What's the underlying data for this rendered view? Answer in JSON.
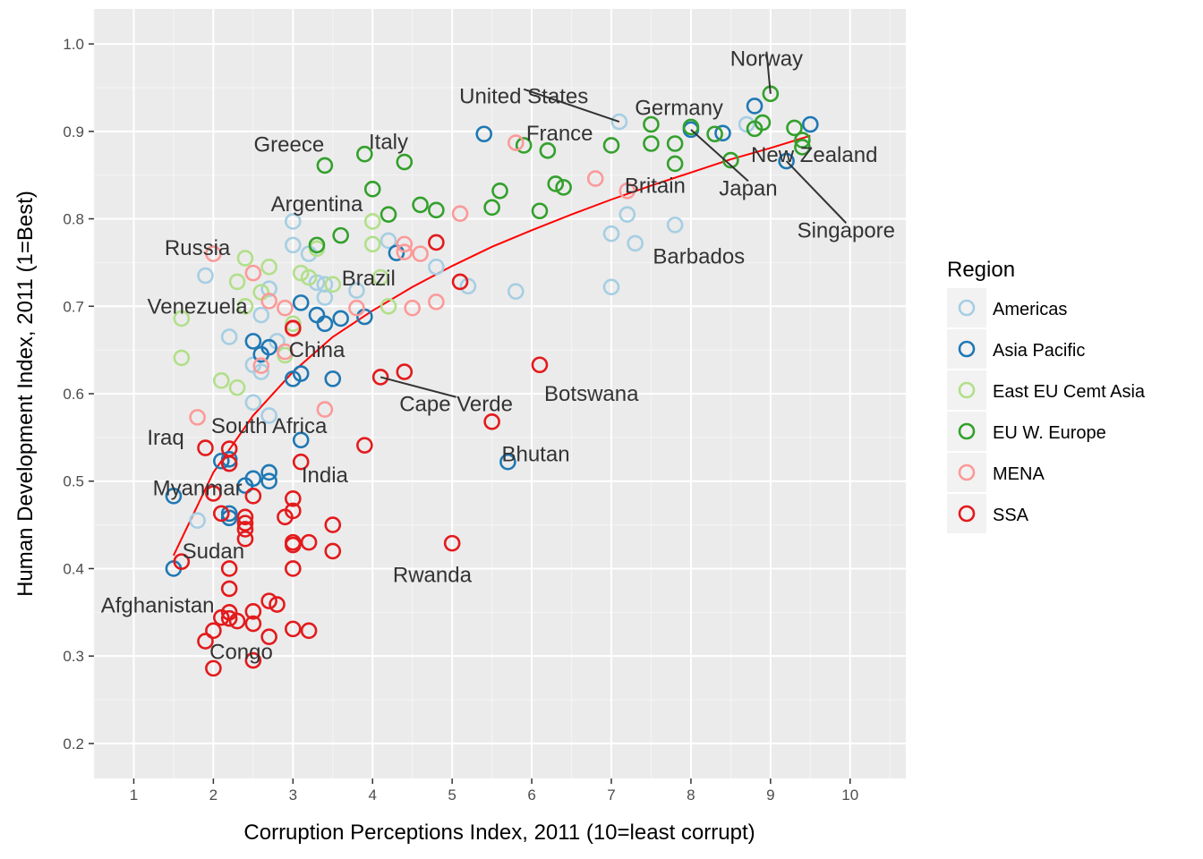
{
  "chart_data": {
    "type": "scatter",
    "xlabel": "Corruption Perceptions Index, 2011 (10=least corrupt)",
    "ylabel": "Human Development Index, 2011 (1=Best)",
    "xlim": [
      0.5,
      10.7
    ],
    "ylim": [
      0.16,
      1.04
    ],
    "xticks": [
      1,
      2,
      3,
      4,
      5,
      6,
      7,
      8,
      9,
      10
    ],
    "yticks": [
      0.2,
      0.3,
      0.4,
      0.5,
      0.6,
      0.7,
      0.8,
      0.9,
      1.0
    ],
    "ytick_labels": [
      "0.2",
      "0.3",
      "0.4",
      "0.5",
      "0.6",
      "0.7",
      "0.8",
      "0.9",
      "1.0"
    ],
    "grid": true,
    "legend": {
      "title": "Region",
      "position": "right",
      "entries": [
        {
          "name": "Americas",
          "color": "#A6CEE3"
        },
        {
          "name": "Asia Pacific",
          "color": "#1F78B4"
        },
        {
          "name": "East EU Cemt Asia",
          "color": "#B2DF8A"
        },
        {
          "name": "EU W. Europe",
          "color": "#33A02C"
        },
        {
          "name": "MENA",
          "color": "#FB9A99"
        },
        {
          "name": "SSA",
          "color": "#E31A1C"
        }
      ]
    },
    "trend_line": {
      "color": "#FF0000",
      "points": [
        [
          1.5,
          0.415
        ],
        [
          2,
          0.51
        ],
        [
          2.5,
          0.575
        ],
        [
          3,
          0.625
        ],
        [
          3.5,
          0.665
        ],
        [
          4,
          0.695
        ],
        [
          4.5,
          0.722
        ],
        [
          5,
          0.746
        ],
        [
          5.5,
          0.768
        ],
        [
          6,
          0.787
        ],
        [
          6.5,
          0.805
        ],
        [
          7,
          0.822
        ],
        [
          7.5,
          0.838
        ],
        [
          8,
          0.853
        ],
        [
          8.5,
          0.868
        ],
        [
          9,
          0.881
        ],
        [
          9.5,
          0.895
        ]
      ]
    },
    "series": [
      {
        "name": "Americas",
        "color": "#A6CEE3",
        "points": [
          [
            1.9,
            0.735
          ],
          [
            2.2,
            0.665
          ],
          [
            2.5,
            0.633
          ],
          [
            2.5,
            0.59
          ],
          [
            2.6,
            0.69
          ],
          [
            2.6,
            0.625
          ],
          [
            2.7,
            0.72
          ],
          [
            2.7,
            0.575
          ],
          [
            2.8,
            0.66
          ],
          [
            3,
            0.797
          ],
          [
            3,
            0.77
          ],
          [
            3.2,
            0.76
          ],
          [
            3.3,
            0.727
          ],
          [
            3.4,
            0.71
          ],
          [
            3.4,
            0.725
          ],
          [
            3.8,
            0.718
          ],
          [
            4.2,
            0.775
          ],
          [
            4.8,
            0.745
          ],
          [
            5.2,
            0.723
          ],
          [
            5.8,
            0.717
          ],
          [
            7,
            0.783
          ],
          [
            7,
            0.722
          ],
          [
            7.1,
            0.911
          ],
          [
            7.2,
            0.805
          ],
          [
            7.3,
            0.772
          ],
          [
            7.8,
            0.793
          ],
          [
            8.7,
            0.908
          ],
          [
            1.8,
            0.455
          ],
          [
            2.1,
            0.463
          ]
        ]
      },
      {
        "name": "Asia Pacific",
        "color": "#1F78B4",
        "points": [
          [
            1.5,
            0.4
          ],
          [
            1.5,
            0.483
          ],
          [
            2.1,
            0.523
          ],
          [
            2.2,
            0.525
          ],
          [
            2.2,
            0.463
          ],
          [
            2.2,
            0.458
          ],
          [
            2.4,
            0.495
          ],
          [
            2.5,
            0.503
          ],
          [
            2.5,
            0.66
          ],
          [
            2.6,
            0.645
          ],
          [
            2.7,
            0.51
          ],
          [
            2.7,
            0.5
          ],
          [
            2.7,
            0.653
          ],
          [
            3,
            0.617
          ],
          [
            3.1,
            0.704
          ],
          [
            3.1,
            0.623
          ],
          [
            3.1,
            0.547
          ],
          [
            3.3,
            0.69
          ],
          [
            3.4,
            0.68
          ],
          [
            3.5,
            0.617
          ],
          [
            3.6,
            0.686
          ],
          [
            3.9,
            0.688
          ],
          [
            4.3,
            0.761
          ],
          [
            5.4,
            0.897
          ],
          [
            5.7,
            0.522
          ],
          [
            8,
            0.902
          ],
          [
            8.8,
            0.929
          ],
          [
            8.4,
            0.898
          ],
          [
            9.2,
            0.866
          ],
          [
            9.5,
            0.908
          ]
        ]
      },
      {
        "name": "East EU Cemt Asia",
        "color": "#B2DF8A",
        "points": [
          [
            1.6,
            0.686
          ],
          [
            1.6,
            0.641
          ],
          [
            2.1,
            0.615
          ],
          [
            2.3,
            0.728
          ],
          [
            2.3,
            0.607
          ],
          [
            2.4,
            0.755
          ],
          [
            2.4,
            0.7
          ],
          [
            2.6,
            0.716
          ],
          [
            2.7,
            0.745
          ],
          [
            2.9,
            0.644
          ],
          [
            3.1,
            0.738
          ],
          [
            3.2,
            0.733
          ],
          [
            3.3,
            0.766
          ],
          [
            3.5,
            0.725
          ],
          [
            4,
            0.771
          ],
          [
            4,
            0.797
          ],
          [
            4.1,
            0.733
          ],
          [
            4.2,
            0.7
          ],
          [
            3,
            0.68
          ]
        ]
      },
      {
        "name": "EU W. Europe",
        "color": "#33A02C",
        "points": [
          [
            3.4,
            0.861
          ],
          [
            3.3,
            0.77
          ],
          [
            3.6,
            0.781
          ],
          [
            3.9,
            0.874
          ],
          [
            4,
            0.834
          ],
          [
            4.2,
            0.805
          ],
          [
            4.4,
            0.865
          ],
          [
            4.6,
            0.816
          ],
          [
            4.8,
            0.81
          ],
          [
            5.5,
            0.813
          ],
          [
            5.6,
            0.832
          ],
          [
            6.1,
            0.809
          ],
          [
            5.9,
            0.884
          ],
          [
            6.2,
            0.878
          ],
          [
            6.3,
            0.84
          ],
          [
            6.4,
            0.836
          ],
          [
            7,
            0.884
          ],
          [
            7.5,
            0.908
          ],
          [
            7.5,
            0.886
          ],
          [
            7.8,
            0.886
          ],
          [
            7.8,
            0.863
          ],
          [
            8,
            0.905
          ],
          [
            8.3,
            0.897
          ],
          [
            8.5,
            0.867
          ],
          [
            8.8,
            0.903
          ],
          [
            8.9,
            0.91
          ],
          [
            9,
            0.943
          ],
          [
            9.3,
            0.904
          ],
          [
            9.4,
            0.89
          ],
          [
            9.4,
            0.882
          ]
        ]
      },
      {
        "name": "MENA",
        "color": "#FB9A99",
        "points": [
          [
            1.8,
            0.573
          ],
          [
            2,
            0.76
          ],
          [
            2.5,
            0.738
          ],
          [
            2.6,
            0.632
          ],
          [
            2.7,
            0.706
          ],
          [
            2.9,
            0.698
          ],
          [
            2.9,
            0.648
          ],
          [
            3,
            0.674
          ],
          [
            3.4,
            0.582
          ],
          [
            3.8,
            0.698
          ],
          [
            4.4,
            0.771
          ],
          [
            4.4,
            0.762
          ],
          [
            4.5,
            0.698
          ],
          [
            4.6,
            0.76
          ],
          [
            4.8,
            0.705
          ],
          [
            5.1,
            0.806
          ],
          [
            5.8,
            0.887
          ],
          [
            6.8,
            0.846
          ],
          [
            7.2,
            0.832
          ]
        ]
      },
      {
        "name": "SSA",
        "color": "#E31A1C",
        "points": [
          [
            1.6,
            0.408
          ],
          [
            1.9,
            0.538
          ],
          [
            2,
            0.486
          ],
          [
            2,
            0.329
          ],
          [
            2,
            0.286
          ],
          [
            2.1,
            0.344
          ],
          [
            2.1,
            0.463
          ],
          [
            2.2,
            0.537
          ],
          [
            2.2,
            0.52
          ],
          [
            2.2,
            0.4
          ],
          [
            2.2,
            0.377
          ],
          [
            2.2,
            0.35
          ],
          [
            2.2,
            0.343
          ],
          [
            2.3,
            0.34
          ],
          [
            2.4,
            0.434
          ],
          [
            2.4,
            0.445
          ],
          [
            2.4,
            0.452
          ],
          [
            2.4,
            0.459
          ],
          [
            2.5,
            0.483
          ],
          [
            2.5,
            0.351
          ],
          [
            2.5,
            0.337
          ],
          [
            2.5,
            0.295
          ],
          [
            2.7,
            0.363
          ],
          [
            2.7,
            0.322
          ],
          [
            2.8,
            0.359
          ],
          [
            2.9,
            0.459
          ],
          [
            3,
            0.48
          ],
          [
            3,
            0.466
          ],
          [
            3,
            0.43
          ],
          [
            3,
            0.427
          ],
          [
            3,
            0.4
          ],
          [
            3,
            0.331
          ],
          [
            3.1,
            0.522
          ],
          [
            3.2,
            0.43
          ],
          [
            3.2,
            0.329
          ],
          [
            3.5,
            0.45
          ],
          [
            3.5,
            0.42
          ],
          [
            3.9,
            0.541
          ],
          [
            4.1,
            0.619
          ],
          [
            4.4,
            0.625
          ],
          [
            4.8,
            0.773
          ],
          [
            5.1,
            0.728
          ],
          [
            5,
            0.429
          ],
          [
            5.5,
            0.568
          ],
          [
            6.1,
            0.633
          ],
          [
            1.9,
            0.317
          ],
          [
            3,
            0.675
          ]
        ]
      }
    ],
    "annotations": [
      {
        "text": "Norway",
        "x": 9,
        "y": 0.943,
        "lx": 8.95,
        "ly": 0.983,
        "ax": "middle",
        "leader": true
      },
      {
        "text": "United States",
        "x": 7.1,
        "y": 0.911,
        "lx": 5.9,
        "ly": 0.94,
        "ax": "middle",
        "leader": true
      },
      {
        "text": "Germany",
        "x": 8,
        "y": 0.905,
        "lx": 7.85,
        "ly": 0.927,
        "ax": "middle",
        "leader": false
      },
      {
        "text": "France",
        "x": 7,
        "y": 0.884,
        "lx": 6.35,
        "ly": 0.898,
        "ax": "middle",
        "leader": false
      },
      {
        "text": "Greece",
        "x": 3.4,
        "y": 0.861,
        "lx": 2.95,
        "ly": 0.885,
        "ax": "middle",
        "leader": false
      },
      {
        "text": "Italy",
        "x": 3.9,
        "y": 0.874,
        "lx": 4.2,
        "ly": 0.888,
        "ax": "middle",
        "leader": false
      },
      {
        "text": "New Zealand",
        "x": 9.5,
        "y": 0.908,
        "lx": 9.55,
        "ly": 0.873,
        "ax": "middle",
        "leader": false
      },
      {
        "text": "Japan",
        "x": 8,
        "y": 0.902,
        "lx": 8.72,
        "ly": 0.835,
        "ax": "middle",
        "leader": true
      },
      {
        "text": "Britain",
        "x": 7.8,
        "y": 0.863,
        "lx": 7.55,
        "ly": 0.838,
        "ax": "middle",
        "leader": false
      },
      {
        "text": "Argentina",
        "x": 3.3,
        "y": 0.797,
        "lx": 3.3,
        "ly": 0.817,
        "ax": "middle",
        "leader": false
      },
      {
        "text": "Singapore",
        "x": 9.2,
        "y": 0.866,
        "lx": 9.95,
        "ly": 0.787,
        "ax": "middle",
        "leader": true
      },
      {
        "text": "Russia",
        "x": 2,
        "y": 0.76,
        "lx": 1.8,
        "ly": 0.767,
        "ax": "middle",
        "leader": false
      },
      {
        "text": "Barbados",
        "x": 7.3,
        "y": 0.772,
        "lx": 8.1,
        "ly": 0.757,
        "ax": "middle",
        "leader": false
      },
      {
        "text": "Brazil",
        "x": 4.2,
        "y": 0.718,
        "lx": 3.95,
        "ly": 0.732,
        "ax": "middle",
        "leader": false
      },
      {
        "text": "Venezuela",
        "x": 2.6,
        "y": 0.735,
        "lx": 1.8,
        "ly": 0.7,
        "ax": "middle",
        "leader": false
      },
      {
        "text": "China",
        "x": 3.5,
        "y": 0.687,
        "lx": 3.3,
        "ly": 0.65,
        "ax": "middle",
        "leader": false
      },
      {
        "text": "Botswana",
        "x": 6.1,
        "y": 0.633,
        "lx": 6.75,
        "ly": 0.6,
        "ax": "middle",
        "leader": false
      },
      {
        "text": "Cape Verde",
        "x": 4.1,
        "y": 0.619,
        "lx": 5.05,
        "ly": 0.588,
        "ax": "middle",
        "leader": true
      },
      {
        "text": "South Africa",
        "x": 2.8,
        "y": 0.619,
        "lx": 2.7,
        "ly": 0.563,
        "ax": "middle",
        "leader": false
      },
      {
        "text": "Iraq",
        "x": 1.8,
        "y": 0.573,
        "lx": 1.4,
        "ly": 0.55,
        "ax": "middle",
        "leader": false
      },
      {
        "text": "Bhutan",
        "x": 5.7,
        "y": 0.522,
        "lx": 6.05,
        "ly": 0.531,
        "ax": "middle",
        "leader": false
      },
      {
        "text": "India",
        "x": 3.1,
        "y": 0.547,
        "lx": 3.4,
        "ly": 0.507,
        "ax": "middle",
        "leader": false
      },
      {
        "text": "Myanmar",
        "x": 1.5,
        "y": 0.483,
        "lx": 1.8,
        "ly": 0.492,
        "ax": "middle",
        "leader": false
      },
      {
        "text": "Sudan",
        "x": 1.6,
        "y": 0.408,
        "lx": 2,
        "ly": 0.42,
        "ax": "middle",
        "leader": false
      },
      {
        "text": "Rwanda",
        "x": 5,
        "y": 0.429,
        "lx": 4.75,
        "ly": 0.393,
        "ax": "middle",
        "leader": false
      },
      {
        "text": "Afghanistan",
        "x": 1.5,
        "y": 0.4,
        "lx": 1.3,
        "ly": 0.358,
        "ax": "middle",
        "leader": false
      },
      {
        "text": "Congo",
        "x": 2.5,
        "y": 0.286,
        "lx": 2.35,
        "ly": 0.305,
        "ax": "middle",
        "leader": false
      }
    ]
  }
}
